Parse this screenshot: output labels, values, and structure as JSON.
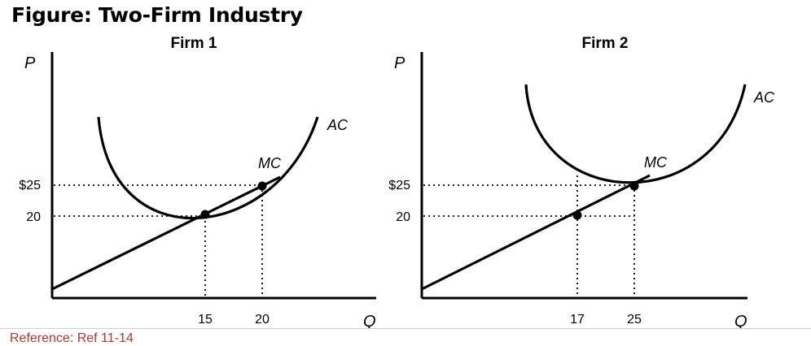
{
  "figure": {
    "title": "Figure: Two-Firm Industry"
  },
  "panels": [
    {
      "title": "Firm 1",
      "y_axis_label": "P",
      "x_axis_label": "Q",
      "price_ticks": [
        "$25",
        "20"
      ],
      "quantity_ticks": [
        "15",
        "20"
      ],
      "ac_label": "AC",
      "mc_label": "MC"
    },
    {
      "title": "Firm 2",
      "y_axis_label": "P",
      "x_axis_label": "Q",
      "price_ticks": [
        "$25",
        "20"
      ],
      "quantity_ticks": [
        "17",
        "25"
      ],
      "ac_label": "AC",
      "mc_label": "MC"
    }
  ],
  "footer": {
    "reference": "Reference: Ref 11-14"
  }
}
